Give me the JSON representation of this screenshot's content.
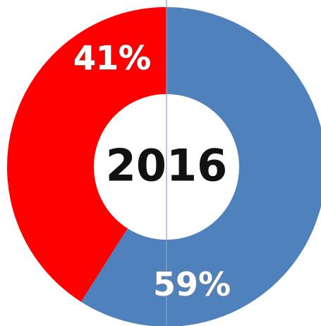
{
  "chart_data": {
    "type": "pie",
    "center_label": "2016",
    "slices": [
      {
        "value": 59,
        "label": "59%",
        "color": "#4f81bd"
      },
      {
        "value": 41,
        "label": "41%",
        "color": "#ff0000"
      }
    ],
    "start": "top",
    "direction": "clockwise",
    "hole": true
  }
}
